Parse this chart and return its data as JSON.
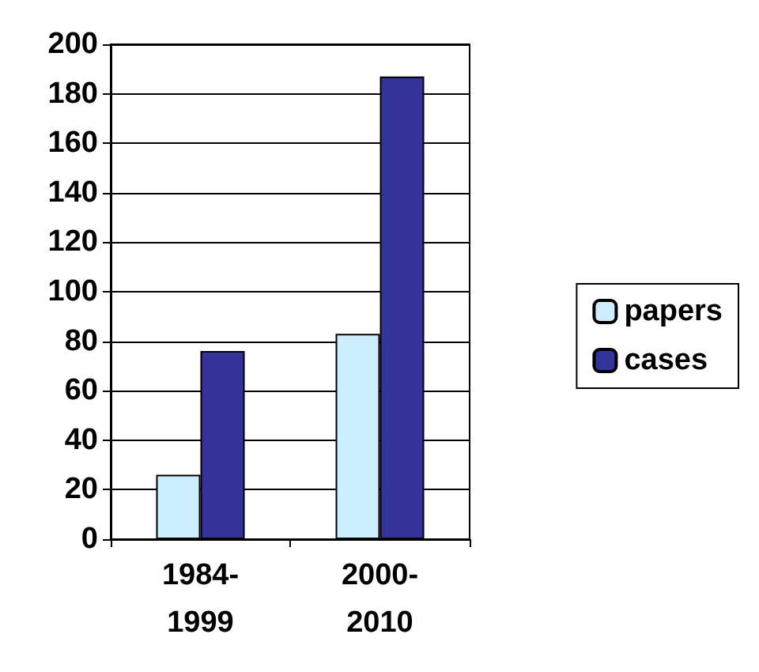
{
  "chart_data": {
    "type": "bar",
    "categories": [
      "1984-1999",
      "2000-2010"
    ],
    "series": [
      {
        "name": "papers",
        "color": "#cceeff",
        "values": [
          26,
          83
        ]
      },
      {
        "name": "cases",
        "color": "#333399",
        "values": [
          76,
          187
        ]
      }
    ],
    "ylim": [
      0,
      200
    ],
    "yticks": [
      0,
      20,
      40,
      60,
      80,
      100,
      120,
      140,
      160,
      180,
      200
    ],
    "grid": "y",
    "legend": "right"
  }
}
